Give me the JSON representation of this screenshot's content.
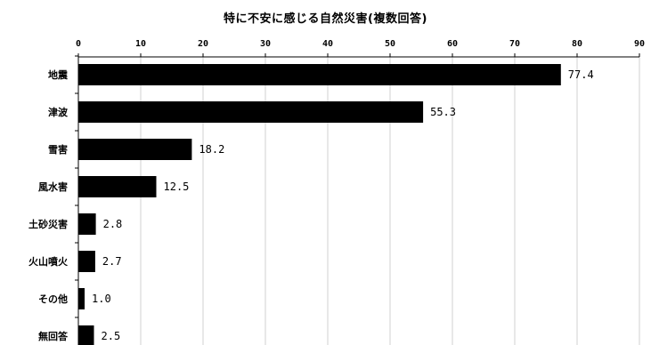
{
  "chart_data": {
    "type": "bar",
    "orientation": "horizontal",
    "title": "特に不安に感じる自然災害(複数回答)",
    "categories": [
      "地震",
      "津波",
      "雪害",
      "風水害",
      "土砂災害",
      "火山噴火",
      "その他",
      "無回答"
    ],
    "values": [
      77.4,
      55.3,
      18.2,
      12.5,
      2.8,
      2.7,
      1.0,
      2.5
    ],
    "value_labels": [
      "77.4",
      "55.3",
      "18.2",
      "12.5",
      "2.8",
      "2.7",
      "1.0",
      "2.5"
    ],
    "xlim": [
      0,
      90
    ],
    "xticks": [
      0,
      10,
      20,
      30,
      40,
      50,
      60,
      70,
      80,
      90
    ],
    "xaxis_position": "top",
    "xlabel": "",
    "ylabel": "",
    "grid": true,
    "bar_color": "#000000",
    "grid_color": "#d0d0d0"
  }
}
